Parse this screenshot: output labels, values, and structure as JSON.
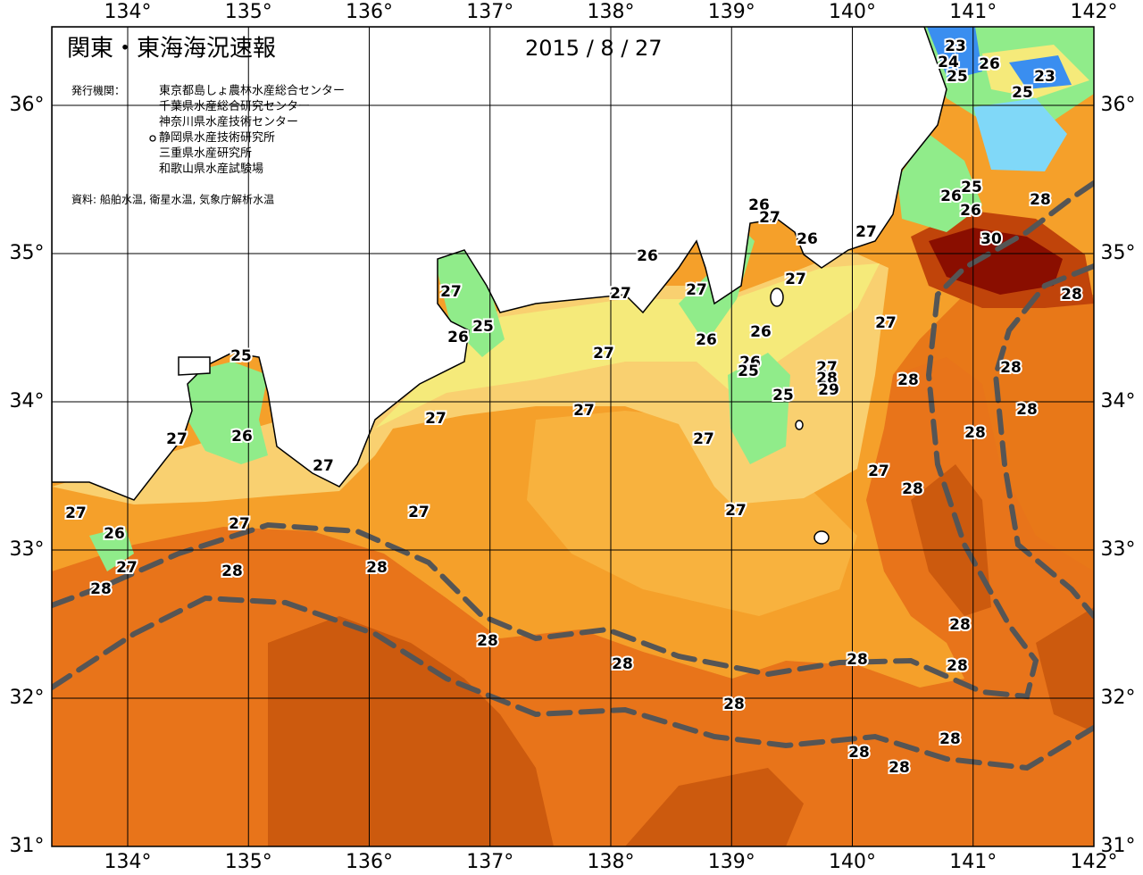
{
  "header": {
    "title": "関東・東海海況速報",
    "date": "2015 / 8 / 27",
    "agencies_label": "発行機関：",
    "agencies": [
      "東京都島しょ農林水産総合センター",
      "千葉県水産総合研究センター",
      "神奈川県水産技術センター",
      "静岡県水産技術研究所",
      "三重県水産研究所",
      "和歌山県水産試験場"
    ],
    "source": "資料: 船舶水温, 衛星水温, 気象庁解析水温"
  },
  "map": {
    "lon_ticks": [
      {
        "value": 134,
        "label": "134°"
      },
      {
        "value": 135,
        "label": "135°"
      },
      {
        "value": 136,
        "label": "136°"
      },
      {
        "value": 137,
        "label": "137°"
      },
      {
        "value": 138,
        "label": "138°"
      },
      {
        "value": 139,
        "label": "139°"
      },
      {
        "value": 140,
        "label": "140°"
      },
      {
        "value": 141,
        "label": "141°"
      },
      {
        "value": 142,
        "label": "142°"
      }
    ],
    "lat_ticks": [
      {
        "value": 31,
        "label": "31°"
      },
      {
        "value": 32,
        "label": "32°"
      },
      {
        "value": 33,
        "label": "33°"
      },
      {
        "value": 34,
        "label": "34°"
      },
      {
        "value": 35,
        "label": "35°"
      },
      {
        "value": 36,
        "label": "36°"
      }
    ],
    "contour_labels": [
      23,
      24,
      26,
      23,
      25,
      25,
      25,
      26,
      28,
      26,
      26,
      27,
      26,
      27,
      30,
      26,
      27,
      27,
      27,
      27,
      28,
      25,
      26,
      27,
      26,
      26,
      27,
      25,
      26,
      25,
      27,
      28,
      28,
      29,
      28,
      25,
      28,
      27,
      27,
      28,
      27,
      26,
      27,
      27,
      27,
      28,
      27,
      27,
      27,
      27,
      26,
      27,
      28,
      28,
      28,
      28,
      28,
      28,
      28,
      28,
      28,
      28,
      28,
      28
    ]
  }
}
